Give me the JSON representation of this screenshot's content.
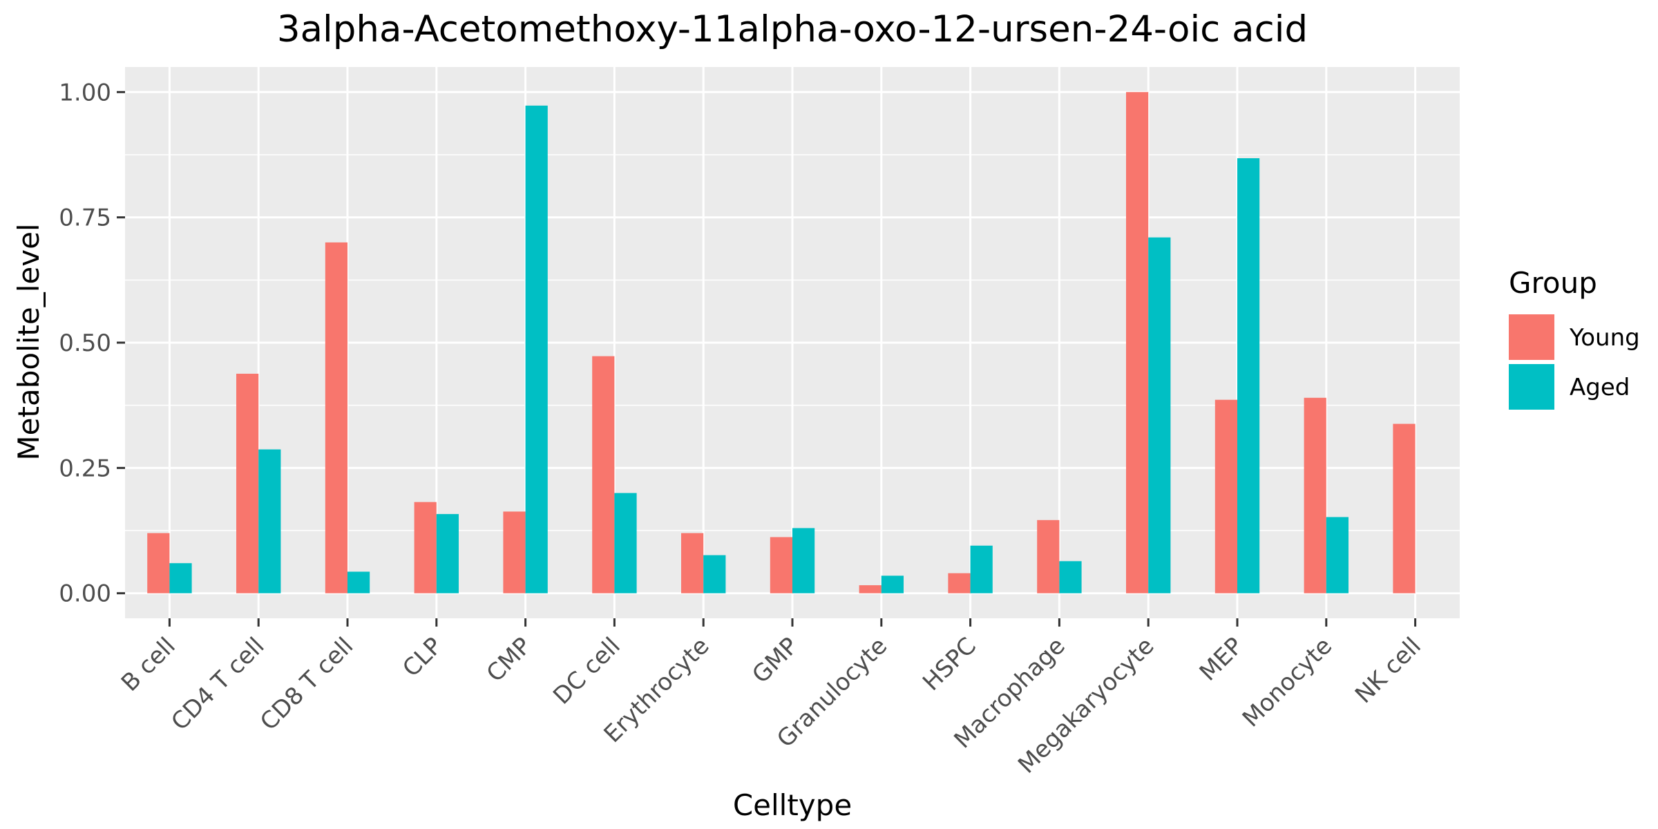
{
  "chart_data": {
    "type": "bar",
    "title": "3alpha-Acetomethoxy-11alpha-oxo-12-ursen-24-oic acid",
    "xlabel": "Celltype",
    "ylabel": "Metabolite_level",
    "categories": [
      "B cell",
      "CD4 T cell",
      "CD8 T cell",
      "CLP",
      "CMP",
      "DC cell",
      "Erythrocyte",
      "GMP",
      "Granulocyte",
      "HSPC",
      "Macrophage",
      "Megakaryocyte",
      "MEP",
      "Monocyte",
      "NK cell"
    ],
    "series": [
      {
        "name": "Young",
        "color": "#F8766D",
        "values": [
          0.12,
          0.438,
          0.7,
          0.182,
          0.163,
          0.473,
          0.12,
          0.112,
          0.016,
          0.04,
          0.146,
          1.0,
          0.386,
          0.39,
          0.338
        ]
      },
      {
        "name": "Aged",
        "color": "#00BFC4",
        "values": [
          0.06,
          0.287,
          0.043,
          0.158,
          0.973,
          0.2,
          0.076,
          0.13,
          0.035,
          0.095,
          0.064,
          0.71,
          0.868,
          0.152,
          null
        ]
      }
    ],
    "ylim": [
      -0.05,
      1.05
    ],
    "yticks": [
      0,
      0.25,
      0.5,
      0.75,
      1.0
    ],
    "ytick_labels": [
      "0.00",
      "0.25",
      "0.50",
      "0.75",
      "1.00"
    ],
    "grid": true,
    "panel_background": "#EBEBEB",
    "grid_color": "#FFFFFF",
    "legend": {
      "title": "Group",
      "position": "right",
      "entries": [
        "Young",
        "Aged"
      ]
    }
  }
}
